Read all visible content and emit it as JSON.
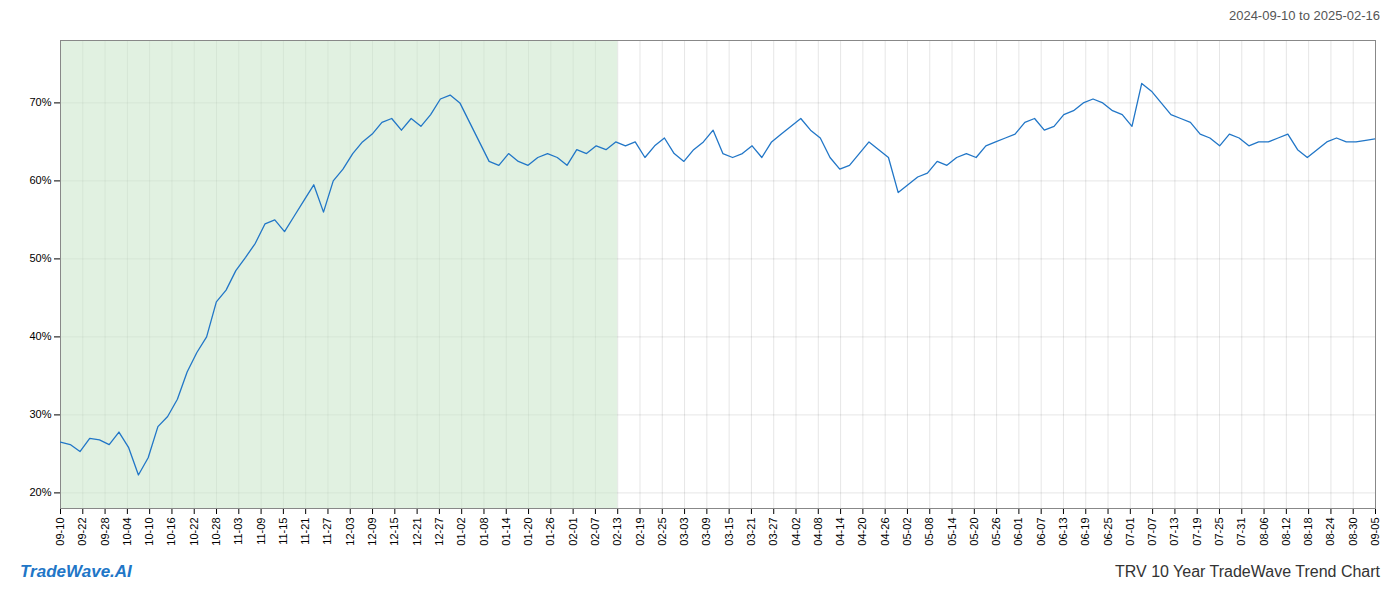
{
  "chart_data": {
    "type": "line",
    "title": "TRV 10 Year TradeWave Trend Chart",
    "subtitle": "2024-09-10 to 2025-02-16",
    "annotations": [
      "TradeWave.AI"
    ],
    "color": "#2176C7",
    "grid": true,
    "shaded_region": {
      "x": [
        0,
        25
      ],
      "color": "#c8e6c9"
    },
    "xlim": [
      0,
      59
    ],
    "xticks": [
      {
        "value": 0,
        "label": "09-10"
      },
      {
        "value": 1,
        "label": "09-22"
      },
      {
        "value": 2,
        "label": "09-28"
      },
      {
        "value": 3,
        "label": "10-04"
      },
      {
        "value": 4,
        "label": "10-10"
      },
      {
        "value": 5,
        "label": "10-16"
      },
      {
        "value": 6,
        "label": "10-22"
      },
      {
        "value": 7,
        "label": "10-28"
      },
      {
        "value": 8,
        "label": "11-03"
      },
      {
        "value": 9,
        "label": "11-09"
      },
      {
        "value": 10,
        "label": "11-15"
      },
      {
        "value": 11,
        "label": "11-21"
      },
      {
        "value": 12,
        "label": "11-27"
      },
      {
        "value": 13,
        "label": "12-03"
      },
      {
        "value": 14,
        "label": "12-09"
      },
      {
        "value": 15,
        "label": "12-15"
      },
      {
        "value": 16,
        "label": "12-21"
      },
      {
        "value": 17,
        "label": "12-27"
      },
      {
        "value": 18,
        "label": "01-02"
      },
      {
        "value": 19,
        "label": "01-08"
      },
      {
        "value": 20,
        "label": "01-14"
      },
      {
        "value": 21,
        "label": "01-20"
      },
      {
        "value": 22,
        "label": "01-26"
      },
      {
        "value": 23,
        "label": "02-01"
      },
      {
        "value": 24,
        "label": "02-07"
      },
      {
        "value": 25,
        "label": "02-13"
      },
      {
        "value": 26,
        "label": "02-19"
      },
      {
        "value": 27,
        "label": "02-25"
      },
      {
        "value": 28,
        "label": "03-03"
      },
      {
        "value": 29,
        "label": "03-09"
      },
      {
        "value": 30,
        "label": "03-15"
      },
      {
        "value": 31,
        "label": "03-21"
      },
      {
        "value": 32,
        "label": "03-27"
      },
      {
        "value": 33,
        "label": "04-02"
      },
      {
        "value": 34,
        "label": "04-08"
      },
      {
        "value": 35,
        "label": "04-14"
      },
      {
        "value": 36,
        "label": "04-20"
      },
      {
        "value": 37,
        "label": "04-26"
      },
      {
        "value": 38,
        "label": "05-02"
      },
      {
        "value": 39,
        "label": "05-08"
      },
      {
        "value": 40,
        "label": "05-14"
      },
      {
        "value": 41,
        "label": "05-20"
      },
      {
        "value": 42,
        "label": "05-26"
      },
      {
        "value": 43,
        "label": "06-01"
      },
      {
        "value": 44,
        "label": "06-07"
      },
      {
        "value": 45,
        "label": "06-13"
      },
      {
        "value": 46,
        "label": "06-19"
      },
      {
        "value": 47,
        "label": "06-25"
      },
      {
        "value": 48,
        "label": "07-01"
      },
      {
        "value": 49,
        "label": "07-07"
      },
      {
        "value": 50,
        "label": "07-13"
      },
      {
        "value": 51,
        "label": "07-19"
      },
      {
        "value": 52,
        "label": "07-25"
      },
      {
        "value": 53,
        "label": "07-31"
      },
      {
        "value": 54,
        "label": "08-06"
      },
      {
        "value": 55,
        "label": "08-12"
      },
      {
        "value": 56,
        "label": "08-18"
      },
      {
        "value": 57,
        "label": "08-24"
      },
      {
        "value": 58,
        "label": "08-30"
      },
      {
        "value": 59,
        "label": "09-05"
      }
    ],
    "ylim": [
      18,
      78
    ],
    "yticks": [
      {
        "value": 20,
        "label": "20%"
      },
      {
        "value": 30,
        "label": "30%"
      },
      {
        "value": 40,
        "label": "40%"
      },
      {
        "value": 50,
        "label": "50%"
      },
      {
        "value": 60,
        "label": "60%"
      },
      {
        "value": 70,
        "label": "70%"
      }
    ],
    "x": [
      0,
      0.437,
      0.8741,
      1.3111,
      1.7481,
      2.1852,
      2.6222,
      3.0593,
      3.4963,
      3.9333,
      4.3704,
      4.8074,
      5.2444,
      5.6815,
      6.1185,
      6.5556,
      6.9926,
      7.4296,
      7.8667,
      8.3037,
      8.7407,
      9.1778,
      9.6148,
      10.0519,
      10.4889,
      10.9259,
      11.363,
      11.8,
      12.237,
      12.6741,
      13.1111,
      13.5481,
      13.9852,
      14.4222,
      14.8593,
      15.2963,
      15.7333,
      16.1704,
      16.6074,
      17.0444,
      17.4815,
      17.9185,
      18.3556,
      18.7926,
      19.2296,
      19.6667,
      20.1037,
      20.5407,
      20.9778,
      21.4148,
      21.8519,
      22.2889,
      22.7259,
      23.163,
      23.6,
      24.037,
      24.4741,
      24.9111,
      25.3481,
      25.7852,
      26.2222,
      26.6593,
      27.0963,
      27.5333,
      27.9704,
      28.4074,
      28.8444,
      29.2815,
      29.7185,
      30.1556,
      30.5926,
      31.0296,
      31.4667,
      31.9037,
      32.3407,
      32.7778,
      33.2148,
      33.6519,
      34.0889,
      34.5259,
      34.963,
      35.4,
      35.837,
      36.2741,
      36.7111,
      37.1481,
      37.5852,
      38.0222,
      38.4593,
      38.8963,
      39.3333,
      39.7704,
      40.2074,
      40.6444,
      41.0815,
      41.5185,
      41.9556,
      42.3926,
      42.8296,
      43.2667,
      43.7037,
      44.1407,
      44.5778,
      45.0148,
      45.4519,
      45.8889,
      46.3259,
      46.763,
      47.2,
      47.637,
      48.0741,
      48.5111,
      48.9481,
      49.3852,
      49.8222,
      50.2593,
      50.6963,
      51.1333,
      51.5704,
      52.0074,
      52.4444,
      52.8815,
      53.3185,
      53.7556,
      54.1926,
      54.6296,
      55.0667,
      55.5037,
      55.9407,
      56.3778,
      56.8148,
      57.2519,
      57.6889,
      58.1259,
      58.563,
      59
    ],
    "values": [
      26.5,
      26.2,
      25.3,
      27.0,
      26.8,
      26.2,
      27.8,
      25.8,
      22.3,
      24.5,
      28.5,
      29.8,
      32.0,
      35.5,
      38.0,
      40.0,
      44.5,
      46.0,
      48.5,
      50.2,
      52.0,
      54.5,
      55.0,
      53.5,
      55.5,
      57.5,
      59.5,
      56.0,
      60.0,
      61.5,
      63.5,
      65.0,
      66.0,
      67.5,
      68.0,
      66.5,
      68.0,
      67.0,
      68.5,
      70.5,
      71.0,
      70.0,
      67.5,
      65.0,
      62.5,
      62.0,
      63.5,
      62.5,
      62.0,
      63.0,
      63.5,
      63.0,
      62.0,
      64.0,
      63.5,
      64.5,
      64.0,
      65.0,
      64.5,
      65.0,
      63.0,
      64.5,
      65.5,
      63.5,
      62.5,
      64.0,
      65.0,
      66.5,
      63.5,
      63.0,
      63.5,
      64.5,
      63.0,
      65.0,
      66.0,
      67.0,
      68.0,
      66.5,
      65.5,
      63.0,
      61.5,
      62.0,
      63.5,
      65.0,
      64.0,
      63.0,
      58.5,
      59.5,
      60.5,
      61.0,
      62.5,
      62.0,
      63.0,
      63.5,
      63.0,
      64.5,
      65.0,
      65.5,
      66.0,
      67.5,
      68.0,
      66.5,
      67.0,
      68.5,
      69.0,
      70.0,
      70.5,
      70.0,
      69.0,
      68.5,
      67.0,
      72.5,
      71.5,
      70.0,
      68.5,
      68.0,
      67.5,
      66.0,
      65.5,
      64.5,
      66.0,
      65.5,
      64.5,
      65.0,
      65.0,
      65.5,
      66.0,
      64.0,
      63.0,
      64.0,
      65.0,
      65.5,
      65.0,
      65.0,
      65.2,
      65.4
    ]
  }
}
